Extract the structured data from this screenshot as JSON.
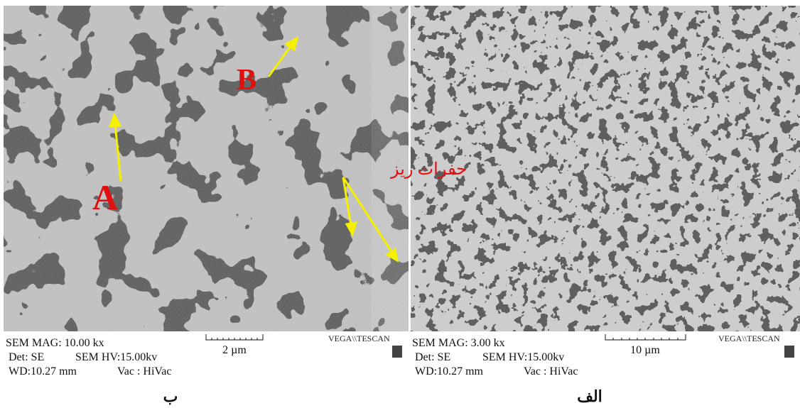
{
  "panels": [
    {
      "caption": "ب",
      "annotations": {
        "a": "A",
        "b": "B",
        "pores": "حفرات ریز"
      },
      "info": {
        "mag": "SEM  MAG: 10.00 kx",
        "det": "Det: SE",
        "hv": "SEM HV:15.00kv",
        "wd": "WD:10.27 mm",
        "vac": "Vac : HiVac"
      },
      "scale": "2 µm",
      "brand": "VEGA\\\\TESCAN"
    },
    {
      "caption": "الف",
      "info": {
        "mag": "SEM  MAG: 3.00 kx",
        "det": "Det: SE",
        "hv": "SEM HV:15.00kv",
        "wd": "WD:10.27 mm",
        "vac": "Vac : HiVac"
      },
      "scale": "10 µm",
      "brand": "VEGA\\\\TESCAN"
    }
  ]
}
